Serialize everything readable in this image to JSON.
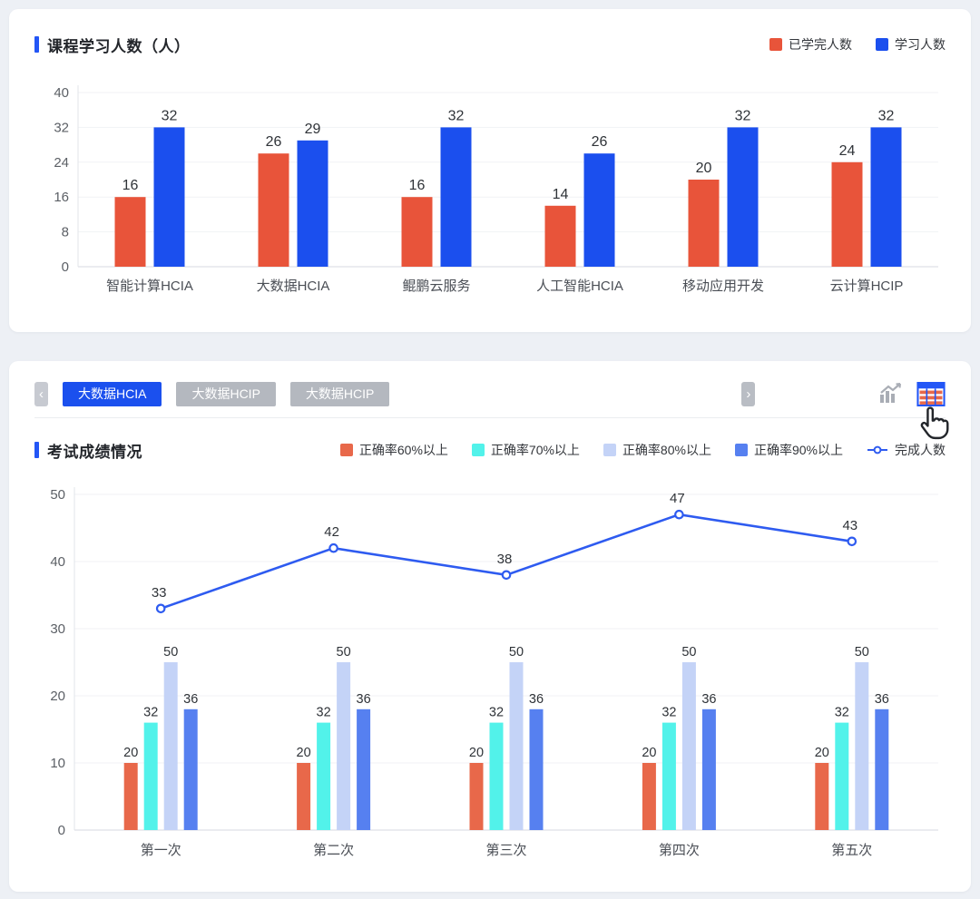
{
  "colors": {
    "page_bg": "#edf0f5",
    "panel_bg": "#ffffff",
    "accent": "#2356f6",
    "active_tab_bg": "#1b50ee",
    "inactive_tab_bg": "#b4b8bf",
    "divider": "#ebedf0",
    "grid_line": "#f1f2f5",
    "tick_text": "#5c6066"
  },
  "top_panel": {
    "title": "课程学习人数（人）"
  },
  "bottom_panel": {
    "title": "考试成绩情况",
    "tabs": [
      {
        "label": "大数据HCIA",
        "active": true
      },
      {
        "label": "大数据HCIP",
        "active": false
      },
      {
        "label": "大数据HCIP",
        "active": false
      }
    ],
    "pager": {
      "left": "‹",
      "right": "›"
    }
  },
  "chart_data": [
    {
      "type": "bar",
      "title": "课程学习人数（人）",
      "categories": [
        "智能计算HCIA",
        "大数据HCIA",
        "鲲鹏云服务",
        "人工智能HCIA",
        "移动应用开发",
        "云计算HCIP"
      ],
      "series": [
        {
          "name": "已学完人数",
          "color": "#e8543a",
          "values": [
            16,
            26,
            16,
            14,
            20,
            24
          ]
        },
        {
          "name": "学习人数",
          "color": "#1b4fee",
          "values": [
            32,
            29,
            32,
            26,
            32,
            32
          ]
        }
      ],
      "ylim": [
        0,
        40
      ],
      "yticks": [
        0,
        8,
        16,
        24,
        32,
        40
      ],
      "grid": true,
      "legend_position": "top-right"
    },
    {
      "type": "bar+line",
      "title": "考试成绩情况",
      "categories": [
        "第一次",
        "第二次",
        "第三次",
        "第四次",
        "第五次"
      ],
      "bar_series": [
        {
          "name": "正确率60%以上",
          "color": "#e8684a",
          "values": [
            20,
            20,
            20,
            20,
            20
          ]
        },
        {
          "name": "正确率70%以上",
          "color": "#52f2ea",
          "values": [
            32,
            32,
            32,
            32,
            32
          ]
        },
        {
          "name": "正确率80%以上",
          "color": "#c4d3f7",
          "values": [
            50,
            50,
            50,
            50,
            50
          ]
        },
        {
          "name": "正确率90%以上",
          "color": "#5680f0",
          "values": [
            36,
            36,
            36,
            36,
            36
          ]
        }
      ],
      "bar_axis_lim": [
        0,
        100
      ],
      "line_series": {
        "name": "完成人数",
        "color": "#2e5bf0",
        "values": [
          33,
          42,
          38,
          47,
          43
        ]
      },
      "ylim": [
        0,
        50
      ],
      "yticks": [
        0,
        10,
        20,
        30,
        40,
        50
      ],
      "grid": true,
      "legend_position": "top"
    }
  ]
}
